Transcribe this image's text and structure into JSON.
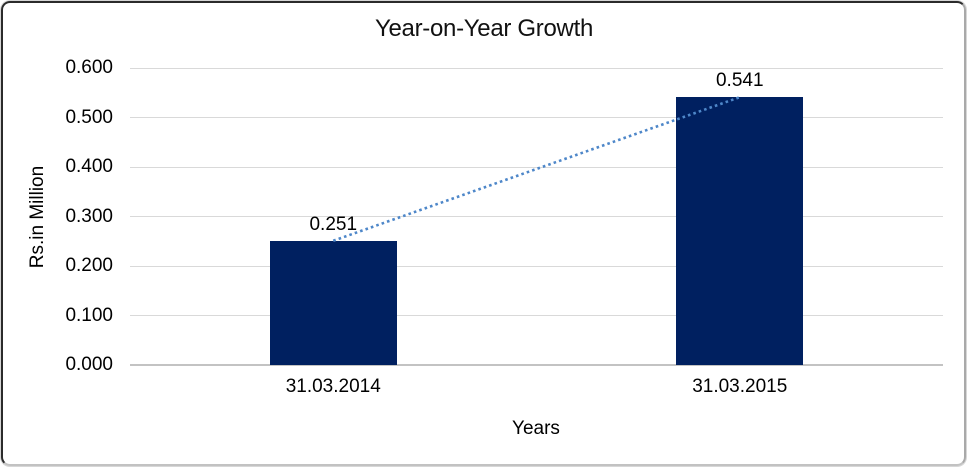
{
  "chart_data": {
    "type": "bar",
    "title": "Year-on-Year Growth",
    "xlabel": "Years",
    "ylabel": "Rs.in Million",
    "categories": [
      "31.03.2014",
      "31.03.2015"
    ],
    "values": [
      0.251,
      0.541
    ],
    "value_labels": [
      "0.251",
      "0.541"
    ],
    "ylim": [
      0,
      0.6
    ],
    "yticks": [
      0,
      0.1,
      0.2,
      0.3,
      0.4,
      0.5,
      0.6
    ],
    "ytick_labels": [
      "0.000",
      "0.100",
      "0.200",
      "0.300",
      "0.400",
      "0.500",
      "0.600"
    ],
    "grid": true,
    "legend": "none",
    "trendline": {
      "type": "linear",
      "style": "dotted",
      "values": [
        0.251,
        0.541
      ]
    },
    "colors": {
      "bar": "#002060",
      "trendline": "#4e87c9",
      "gridline": "#d9d9d9",
      "axis_line": "#c3c3c3",
      "text": "#000000",
      "background": "#ffffff"
    }
  }
}
